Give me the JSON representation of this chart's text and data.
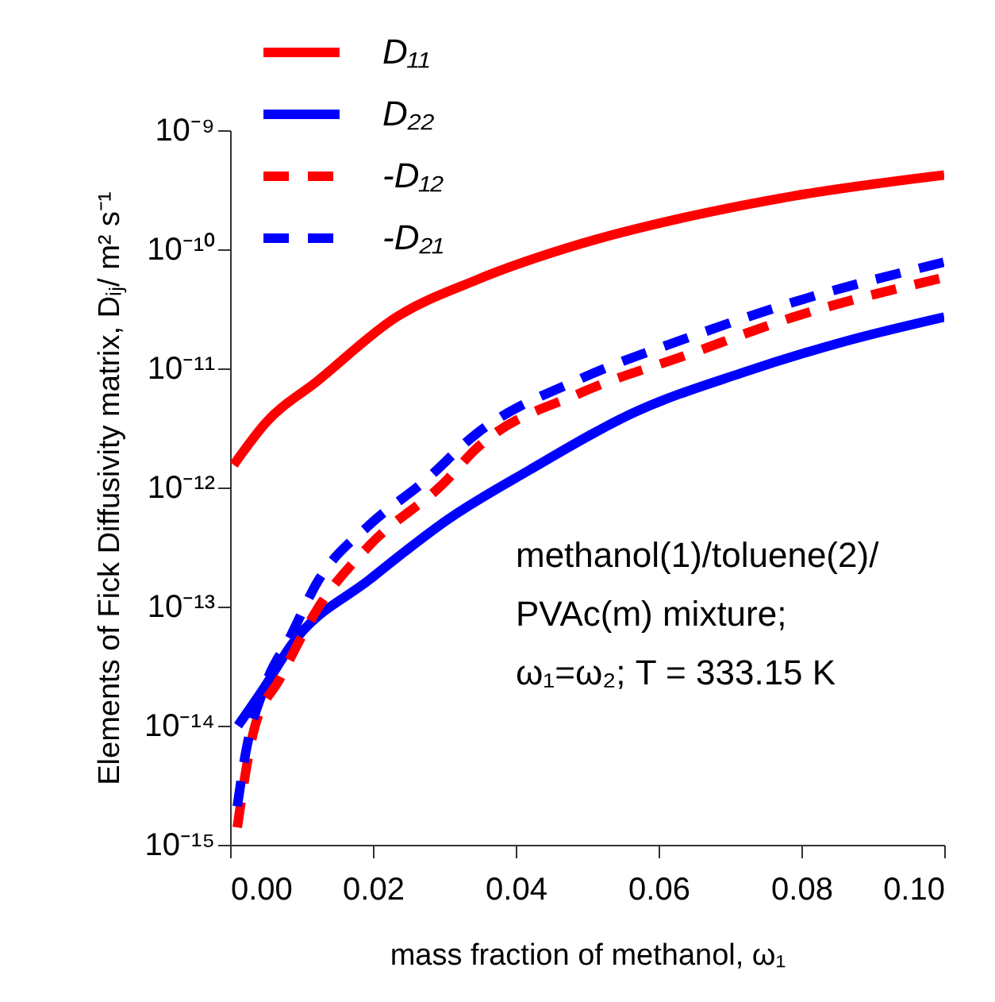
{
  "chart_data": {
    "type": "line",
    "xlabel": "mass fraction of methanol, ω₁",
    "ylabel": "Elements of Fick Diffusivity matrix, Dᵢⱼ/ m² s⁻¹",
    "log": true,
    "grid": false,
    "legend": "top left",
    "marker": "none",
    "xlim": [
      0,
      0.1
    ],
    "ylim": [
      1e-15,
      1e-09
    ],
    "xticks": [
      {
        "value": 0,
        "label": "0.00"
      },
      {
        "value": 0.02,
        "label": "0.02"
      },
      {
        "value": 0.04,
        "label": "0.04"
      },
      {
        "value": 0.06,
        "label": "0.06"
      },
      {
        "value": 0.08,
        "label": "0.08"
      },
      {
        "value": 0.1,
        "label": "0.10"
      }
    ],
    "yticks": [
      {
        "value": 1e-15,
        "label": "10⁻¹⁵"
      },
      {
        "value": 1e-14,
        "label": "10⁻¹⁴"
      },
      {
        "value": 1e-13,
        "label": "10⁻¹³"
      },
      {
        "value": 1e-12,
        "label": "10⁻¹²"
      },
      {
        "value": 1e-11,
        "label": "10⁻¹¹"
      },
      {
        "value": 1e-10,
        "label": "10⁻¹⁰"
      },
      {
        "value": 1e-09,
        "label": "10⁻⁹"
      }
    ],
    "series": [
      {
        "name": "D₁₁",
        "color": "#ff0000",
        "line_style": "solid",
        "x": [
          0.0005,
          0.005,
          0.0122,
          0.0233,
          0.0344,
          0.0493,
          0.064,
          0.0789,
          0.1
        ],
        "values": [
          1.55e-12,
          3.5e-12,
          7.8e-12,
          2.7e-11,
          5.5e-11,
          1.12e-10,
          1.87e-10,
          2.8e-10,
          4.2e-10
        ]
      },
      {
        "name": "D₂₂",
        "color": "#0000ff",
        "line_style": "solid",
        "x": [
          0.0011,
          0.0048,
          0.0085,
          0.0196,
          0.0307,
          0.0419,
          0.0567,
          0.0715,
          0.0863,
          0.1
        ],
        "values": [
          1e-14,
          2.1e-14,
          4.7e-14,
          1.7e-13,
          5.5e-13,
          1.4e-12,
          4.3e-12,
          9.1e-12,
          1.7e-11,
          2.7e-11
        ]
      },
      {
        "name": "-D₁₂",
        "color": "#ff0000",
        "line_style": "dashed",
        "x": [
          0.001,
          0.0033,
          0.007,
          0.0122,
          0.0196,
          0.03,
          0.0344,
          0.0493,
          0.064,
          0.0789,
          0.1
        ],
        "values": [
          1.4e-15,
          9e-15,
          2.5e-14,
          9.5e-14,
          3.3e-13,
          1.1e-12,
          2.1e-12,
          6.3e-12,
          1.3e-11,
          2.7e-11,
          5.8e-11
        ]
      },
      {
        "name": "-D₂₁",
        "color": "#0000ff",
        "line_style": "dashed",
        "x": [
          0.001,
          0.0022,
          0.0048,
          0.0085,
          0.0122,
          0.0196,
          0.027,
          0.0344,
          0.0493,
          0.064,
          0.0789,
          0.1
        ],
        "values": [
          2.1e-15,
          6e-15,
          2.1e-14,
          5.7e-14,
          1.6e-13,
          4.9e-13,
          1.1e-12,
          2.8e-12,
          8.3e-12,
          1.8e-11,
          3.6e-11,
          7.8e-11
        ]
      }
    ],
    "annotations": [
      "methanol(1)/toluene(2)/",
      "PVAc(m) mixture;",
      "ω₁=ω₂; T = 333.15 K"
    ]
  }
}
